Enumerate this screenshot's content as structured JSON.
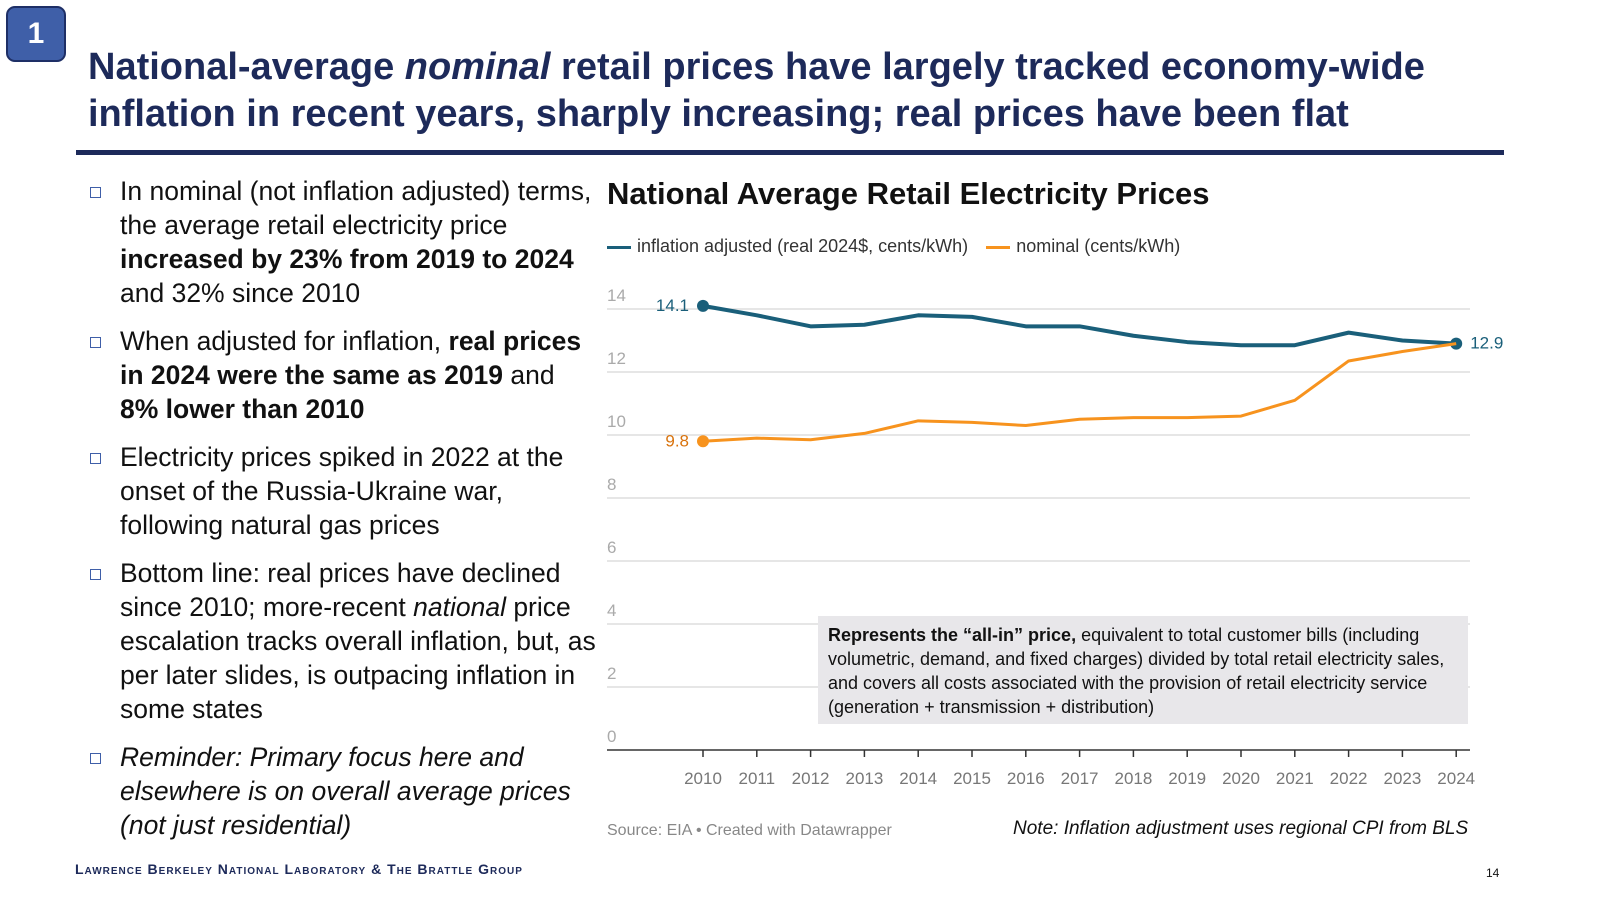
{
  "slide_number": "1",
  "title_parts": [
    "National-average ",
    "nominal",
    " retail prices have largely tracked economy-wide inflation in recent years, sharply increasing; real prices have been flat"
  ],
  "bullets": [
    {
      "parts": [
        [
          "In nominal (not inflation adjusted) terms, the average retail electricity price ",
          ""
        ],
        [
          "increased by 23% from 2019 to 2024",
          "b"
        ],
        [
          " and 32% since 2010",
          ""
        ]
      ]
    },
    {
      "parts": [
        [
          "When adjusted for inflation, ",
          ""
        ],
        [
          "real prices in 2024 were the same as 2019",
          "b"
        ],
        [
          " and ",
          ""
        ],
        [
          "8% lower than 2010",
          "b"
        ]
      ]
    },
    {
      "parts": [
        [
          "Electricity prices spiked in 2022 at the onset of the Russia-Ukraine war, following natural gas prices",
          ""
        ]
      ]
    },
    {
      "parts": [
        [
          "Bottom line: real prices have declined since 2010; more-recent ",
          ""
        ],
        [
          "national",
          "i"
        ],
        [
          " price escalation tracks overall inflation, but, as per later slides, is outpacing inflation in some states",
          ""
        ]
      ]
    },
    {
      "parts": [
        [
          "Reminder: Primary focus here and elsewhere is on overall average prices (not just residential)",
          "i"
        ]
      ]
    }
  ],
  "note": {
    "bold": "Represents the “all-in” price,",
    "text": " equivalent to total customer bills (including volumetric, demand, and fixed charges) divided by total retail electricity sales, and covers all costs associated with the provision of retail electricity service (generation + transmission + distribution)"
  },
  "source": "Source: EIA • Created with Datawrapper",
  "inflation_note": "Note: Inflation adjustment uses regional CPI from BLS",
  "footer": "Lawrence Berkeley National Laboratory & The Brattle Group",
  "page_number": "14",
  "chart_data": {
    "type": "line",
    "title": "National Average Retail Electricity Prices",
    "x": [
      2010,
      2011,
      2012,
      2013,
      2014,
      2015,
      2016,
      2017,
      2018,
      2019,
      2020,
      2021,
      2022,
      2023,
      2024
    ],
    "ylim": [
      0,
      14
    ],
    "yticks": [
      0,
      2,
      4,
      6,
      8,
      10,
      12,
      14
    ],
    "grid": true,
    "legend_position": "top-left",
    "series": [
      {
        "name": "inflation adjusted (real 2024$, cents/kWh)",
        "color": "#1a5f7a",
        "values": [
          14.1,
          13.8,
          13.45,
          13.5,
          13.8,
          13.75,
          13.45,
          13.45,
          13.15,
          12.95,
          12.85,
          12.85,
          13.25,
          13.0,
          12.9
        ],
        "start_label": "14.1",
        "end_label": "12.9"
      },
      {
        "name": "nominal (cents/kWh)",
        "color": "#f7931e",
        "values": [
          9.8,
          9.9,
          9.85,
          10.05,
          10.45,
          10.4,
          10.3,
          10.5,
          10.55,
          10.55,
          10.6,
          11.1,
          12.35,
          12.65,
          12.9
        ],
        "start_label": "9.8"
      }
    ]
  }
}
